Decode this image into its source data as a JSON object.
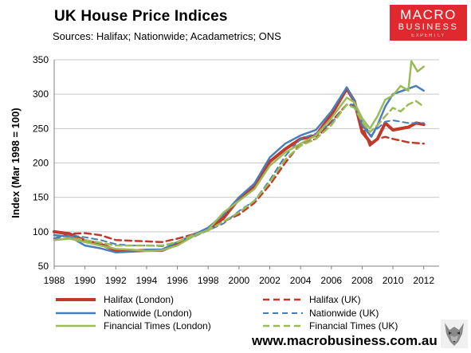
{
  "header": {
    "title": "UK House Price Indices",
    "subtitle": "Sources: Halifax; Nationwide; Acadametrics; ONS"
  },
  "logo": {
    "line1": "MACRO",
    "line2": "BUSINESS",
    "line3": "EXPERTLY",
    "color": "#e0292f"
  },
  "footer": {
    "website": "www.macrobusiness.com.au",
    "icon": "wolf-icon"
  },
  "chart_data": {
    "type": "line",
    "title": "UK House Price Indices",
    "xlabel": "",
    "ylabel": "Index (Mar 1998 = 100)",
    "xlim": [
      1988,
      2013
    ],
    "ylim": [
      50,
      350
    ],
    "xticks": [
      "1988",
      "1990",
      "1992",
      "1994",
      "1996",
      "1998",
      "2000",
      "2002",
      "2004",
      "2006",
      "2008",
      "2010",
      "2012"
    ],
    "yticks": [
      "50",
      "100",
      "150",
      "200",
      "250",
      "300",
      "350"
    ],
    "grid": "horizontal",
    "legend_position": "bottom",
    "series": [
      {
        "name": "Halifax (London)",
        "color": "#c0392b",
        "dash": "solid",
        "width": 4,
        "points": [
          [
            1988,
            100
          ],
          [
            1989,
            97
          ],
          [
            1990,
            87
          ],
          [
            1991,
            82
          ],
          [
            1992,
            73
          ],
          [
            1993,
            72
          ],
          [
            1994,
            73
          ],
          [
            1995,
            73
          ],
          [
            1996,
            82
          ],
          [
            1997,
            95
          ],
          [
            1998,
            103
          ],
          [
            1999,
            120
          ],
          [
            2000,
            148
          ],
          [
            2001,
            165
          ],
          [
            2002,
            202
          ],
          [
            2003,
            220
          ],
          [
            2004,
            235
          ],
          [
            2005,
            240
          ],
          [
            2006,
            270
          ],
          [
            2007,
            308
          ],
          [
            2007.5,
            290
          ],
          [
            2008,
            245
          ],
          [
            2008.6,
            228
          ],
          [
            2009,
            235
          ],
          [
            2009.5,
            258
          ],
          [
            2010,
            248
          ],
          [
            2011,
            252
          ],
          [
            2011.5,
            258
          ],
          [
            2012,
            256
          ]
        ]
      },
      {
        "name": "Halifax (UK)",
        "color": "#c0392b",
        "dash": "dashed",
        "width": 2.5,
        "points": [
          [
            1988,
            90
          ],
          [
            1989,
            97
          ],
          [
            1990,
            98
          ],
          [
            1991,
            95
          ],
          [
            1992,
            88
          ],
          [
            1993,
            87
          ],
          [
            1994,
            86
          ],
          [
            1995,
            85
          ],
          [
            1996,
            90
          ],
          [
            1997,
            96
          ],
          [
            1998,
            102
          ],
          [
            1999,
            115
          ],
          [
            2000,
            125
          ],
          [
            2001,
            142
          ],
          [
            2002,
            168
          ],
          [
            2003,
            200
          ],
          [
            2004,
            228
          ],
          [
            2005,
            235
          ],
          [
            2006,
            260
          ],
          [
            2007,
            285
          ],
          [
            2007.5,
            283
          ],
          [
            2008,
            255
          ],
          [
            2008.5,
            225
          ],
          [
            2009,
            235
          ],
          [
            2009.5,
            238
          ],
          [
            2010,
            235
          ],
          [
            2011,
            230
          ],
          [
            2012,
            228
          ]
        ]
      },
      {
        "name": "Nationwide (London)",
        "color": "#4a7ebb",
        "dash": "solid",
        "width": 2.5,
        "points": [
          [
            1988,
            95
          ],
          [
            1989,
            93
          ],
          [
            1990,
            80
          ],
          [
            1991,
            76
          ],
          [
            1992,
            70
          ],
          [
            1993,
            71
          ],
          [
            1994,
            74
          ],
          [
            1995,
            74
          ],
          [
            1996,
            85
          ],
          [
            1997,
            95
          ],
          [
            1998,
            106
          ],
          [
            1999,
            125
          ],
          [
            2000,
            150
          ],
          [
            2001,
            170
          ],
          [
            2002,
            208
          ],
          [
            2003,
            228
          ],
          [
            2004,
            240
          ],
          [
            2005,
            248
          ],
          [
            2006,
            275
          ],
          [
            2007,
            310
          ],
          [
            2007.5,
            290
          ],
          [
            2008,
            255
          ],
          [
            2008.6,
            238
          ],
          [
            2009,
            255
          ],
          [
            2009.5,
            282
          ],
          [
            2010,
            300
          ],
          [
            2011,
            308
          ],
          [
            2011.5,
            312
          ],
          [
            2012,
            305
          ]
        ]
      },
      {
        "name": "Nationwide (UK)",
        "color": "#4a7ebb",
        "dash": "dashed",
        "width": 2,
        "points": [
          [
            1988,
            90
          ],
          [
            1989,
            95
          ],
          [
            1990,
            92
          ],
          [
            1991,
            88
          ],
          [
            1992,
            82
          ],
          [
            1993,
            80
          ],
          [
            1994,
            80
          ],
          [
            1995,
            79
          ],
          [
            1996,
            85
          ],
          [
            1997,
            92
          ],
          [
            1998,
            102
          ],
          [
            1999,
            112
          ],
          [
            2000,
            130
          ],
          [
            2001,
            145
          ],
          [
            2002,
            175
          ],
          [
            2003,
            210
          ],
          [
            2004,
            235
          ],
          [
            2005,
            243
          ],
          [
            2006,
            258
          ],
          [
            2007,
            285
          ],
          [
            2007.5,
            285
          ],
          [
            2008,
            260
          ],
          [
            2008.6,
            240
          ],
          [
            2009,
            250
          ],
          [
            2009.5,
            260
          ],
          [
            2010,
            262
          ],
          [
            2011,
            258
          ],
          [
            2012,
            258
          ]
        ]
      },
      {
        "name": "Financial Times (London)",
        "color": "#9bbb59",
        "dash": "solid",
        "width": 2.5,
        "points": [
          [
            1988,
            88
          ],
          [
            1989,
            90
          ],
          [
            1990,
            85
          ],
          [
            1991,
            80
          ],
          [
            1992,
            75
          ],
          [
            1993,
            74
          ],
          [
            1994,
            72
          ],
          [
            1995,
            73
          ],
          [
            1996,
            80
          ],
          [
            1997,
            93
          ],
          [
            1998,
            103
          ],
          [
            1999,
            128
          ],
          [
            2000,
            145
          ],
          [
            2001,
            162
          ],
          [
            2002,
            196
          ],
          [
            2003,
            215
          ],
          [
            2004,
            228
          ],
          [
            2005,
            240
          ],
          [
            2006,
            265
          ],
          [
            2007,
            295
          ],
          [
            2007.5,
            288
          ],
          [
            2008,
            265
          ],
          [
            2008.5,
            250
          ],
          [
            2009,
            268
          ],
          [
            2009.5,
            292
          ],
          [
            2010,
            298
          ],
          [
            2010.5,
            312
          ],
          [
            2011,
            305
          ],
          [
            2011.2,
            348
          ],
          [
            2011.6,
            333
          ],
          [
            2012,
            340
          ]
        ]
      },
      {
        "name": "Financial Times (UK)",
        "color": "#9bbb59",
        "dash": "dashed",
        "width": 2.5,
        "points": [
          [
            1988,
            88
          ],
          [
            1989,
            91
          ],
          [
            1990,
            88
          ],
          [
            1991,
            84
          ],
          [
            1992,
            80
          ],
          [
            1993,
            80
          ],
          [
            1994,
            80
          ],
          [
            1995,
            80
          ],
          [
            1996,
            85
          ],
          [
            1997,
            95
          ],
          [
            1998,
            102
          ],
          [
            1999,
            115
          ],
          [
            2000,
            128
          ],
          [
            2001,
            145
          ],
          [
            2002,
            172
          ],
          [
            2003,
            205
          ],
          [
            2004,
            225
          ],
          [
            2005,
            235
          ],
          [
            2006,
            255
          ],
          [
            2007,
            285
          ],
          [
            2007.5,
            280
          ],
          [
            2008,
            260
          ],
          [
            2008.5,
            245
          ],
          [
            2009,
            255
          ],
          [
            2009.5,
            268
          ],
          [
            2010,
            280
          ],
          [
            2010.5,
            275
          ],
          [
            2011,
            285
          ],
          [
            2011.5,
            290
          ],
          [
            2012,
            282
          ]
        ]
      }
    ]
  }
}
